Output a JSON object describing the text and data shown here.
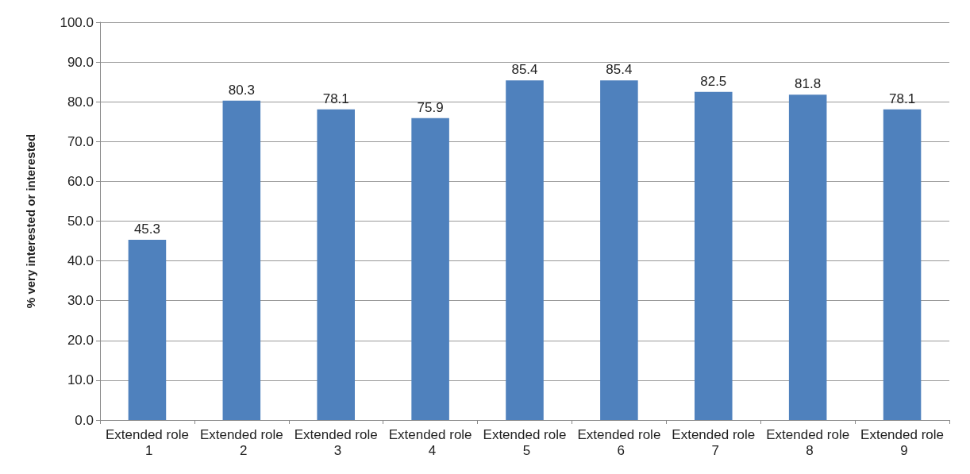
{
  "chart_data": {
    "type": "bar",
    "ylabel": "% very interested or interested",
    "categories": [
      "Extended role 1",
      "Extended role 2",
      "Extended role 3",
      "Extended role 4",
      "Extended role 5",
      "Extended role 6",
      "Extended role 7",
      "Extended role 8",
      "Extended role 9"
    ],
    "values": [
      45.3,
      80.3,
      78.1,
      75.9,
      85.4,
      85.4,
      82.5,
      81.8,
      78.1
    ],
    "color": "#4f81bd",
    "ylim": [
      0,
      100
    ],
    "yticks": [
      {
        "value": 0,
        "label": "0.0"
      },
      {
        "value": 10,
        "label": "10.0"
      },
      {
        "value": 20,
        "label": "20.0"
      },
      {
        "value": 30,
        "label": "30.0"
      },
      {
        "value": 40,
        "label": "40.0"
      },
      {
        "value": 50,
        "label": "50.0"
      },
      {
        "value": 60,
        "label": "60.0"
      },
      {
        "value": 70,
        "label": "70.0"
      },
      {
        "value": 80,
        "label": "80.0"
      },
      {
        "value": 90,
        "label": "90.0"
      },
      {
        "value": 100,
        "label": "100.0"
      }
    ],
    "grid": true,
    "data_labels": true
  }
}
